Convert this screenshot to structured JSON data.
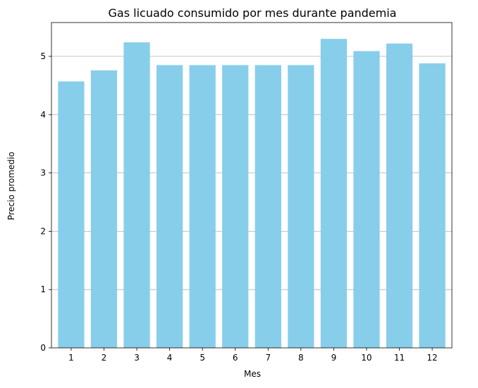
{
  "chart_data": {
    "type": "bar",
    "title": "Gas licuado consumido por mes durante pandemia",
    "xlabel": "Mes",
    "ylabel": "Precio promedio",
    "categories": [
      "1",
      "2",
      "3",
      "4",
      "5",
      "6",
      "7",
      "8",
      "9",
      "10",
      "11",
      "12"
    ],
    "values": [
      4.57,
      4.76,
      5.24,
      4.85,
      4.85,
      4.85,
      4.85,
      4.85,
      5.3,
      5.09,
      5.22,
      4.88
    ],
    "ylim": [
      0,
      5.58
    ],
    "yticks": [
      0,
      1,
      2,
      3,
      4,
      5
    ],
    "grid": "y-major",
    "bar_color": "#87ceeb",
    "grid_color": "#b0b0b0",
    "legend": "none"
  }
}
